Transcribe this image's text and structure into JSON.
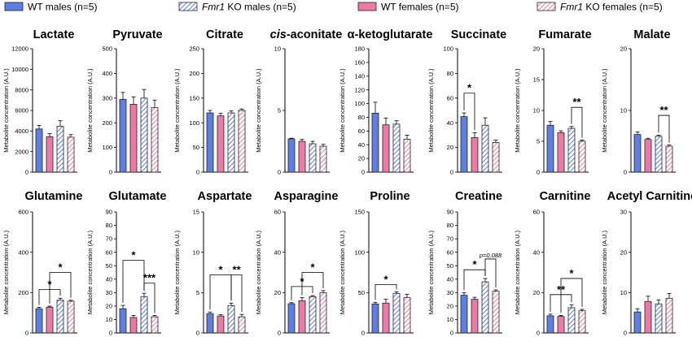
{
  "legend": [
    {
      "prefix": "WT",
      "rest": " males (n=5)",
      "italic": false,
      "color": "#5b7fe6",
      "hatched": false
    },
    {
      "prefix": "Fmr1",
      "rest": " KO males (n=5)",
      "italic": true,
      "color": "#5b7fe6",
      "hatched": true
    },
    {
      "prefix": "WT",
      "rest": " females (n=5)",
      "italic": false,
      "color": "#ef78a6",
      "hatched": false
    },
    {
      "prefix": "Fmr1",
      "rest": " KO females (n=5)",
      "italic": true,
      "color": "#ef78a6",
      "hatched": true
    }
  ],
  "colors": {
    "male": "#5b7fe6",
    "female": "#ef78a6",
    "hatch": "#5b7fe6",
    "hatch_female": "#ef78a6"
  },
  "ylabel": "Metabolite concentration (A.U.)",
  "chart_data": [
    {
      "type": "bar",
      "title": "Lactate",
      "title_italic_prefix": "",
      "ylim": [
        0,
        12000
      ],
      "yticks": [
        0,
        2000,
        4000,
        6000,
        8000,
        10000,
        12000
      ],
      "values": [
        4200,
        3450,
        4450,
        3400
      ],
      "errors": [
        350,
        300,
        550,
        250
      ],
      "sig": []
    },
    {
      "type": "bar",
      "title": "Pyruvate",
      "title_italic_prefix": "",
      "ylim": [
        0,
        500
      ],
      "yticks": [
        0,
        100,
        200,
        300,
        400,
        500
      ],
      "values": [
        295,
        275,
        300,
        262
      ],
      "errors": [
        28,
        30,
        35,
        30
      ],
      "sig": []
    },
    {
      "type": "bar",
      "title": "Citrate",
      "title_italic_prefix": "",
      "ylim": [
        0,
        250
      ],
      "yticks": [
        0,
        50,
        100,
        150,
        200,
        250
      ],
      "values": [
        120,
        114,
        120,
        125
      ],
      "errors": [
        5,
        5,
        4,
        3
      ],
      "sig": []
    },
    {
      "type": "bar",
      "title": "-aconitate",
      "title_italic_prefix": "cis",
      "ylim": [
        0,
        10
      ],
      "yticks": [
        0,
        5,
        10
      ],
      "values": [
        2.7,
        2.5,
        2.3,
        2.1
      ],
      "errors": [
        0.05,
        0.15,
        0.2,
        0.15
      ],
      "sig": []
    },
    {
      "type": "bar",
      "title": "α-ketoglutarate",
      "title_italic_prefix": "",
      "ylim": [
        0,
        180
      ],
      "yticks": [
        0,
        20,
        40,
        60,
        80,
        100,
        120,
        140,
        160,
        180
      ],
      "values": [
        86,
        69,
        70,
        48
      ],
      "errors": [
        16,
        10,
        5,
        6
      ],
      "sig": []
    },
    {
      "type": "bar",
      "title": "Succinate",
      "title_italic_prefix": "",
      "ylim": [
        0,
        100
      ],
      "yticks": [
        0,
        20,
        40,
        60,
        80,
        100
      ],
      "values": [
        45,
        28,
        38,
        24
      ],
      "errors": [
        3,
        4,
        6,
        2
      ],
      "sig": [
        {
          "a": 0,
          "b": 1,
          "label": "*",
          "y": 64
        }
      ]
    },
    {
      "type": "bar",
      "title": "Fumarate",
      "title_italic_prefix": "",
      "ylim": [
        0,
        20
      ],
      "yticks": [
        0,
        5,
        10,
        15,
        20
      ],
      "values": [
        7.6,
        6.4,
        7.1,
        5.0
      ],
      "errors": [
        0.6,
        0.3,
        0.3,
        0.2
      ],
      "sig": [
        {
          "a": 2,
          "b": 3,
          "label": "**",
          "y": 10.5
        }
      ]
    },
    {
      "type": "bar",
      "title": "Malate",
      "title_italic_prefix": "",
      "ylim": [
        0,
        20
      ],
      "yticks": [
        0,
        10,
        20
      ],
      "values": [
        6.1,
        5.3,
        5.8,
        4.2
      ],
      "errors": [
        0.4,
        0.2,
        0.2,
        0.2
      ],
      "sig": [
        {
          "a": 2,
          "b": 3,
          "label": "**",
          "y": 9.2
        }
      ]
    },
    {
      "type": "bar",
      "title": "Glutamine",
      "title_italic_prefix": "",
      "ylim": [
        0,
        600
      ],
      "yticks": [
        0,
        200,
        400,
        600
      ],
      "values": [
        120,
        128,
        162,
        157
      ],
      "errors": [
        7,
        5,
        10,
        5
      ],
      "sig": [
        {
          "a": 0,
          "b": 2,
          "label": "*",
          "y": 215
        },
        {
          "a": 1,
          "b": 3,
          "label": "*",
          "y": 300
        }
      ]
    },
    {
      "type": "bar",
      "title": "Glutamate",
      "title_italic_prefix": "",
      "ylim": [
        0,
        90
      ],
      "yticks": [
        0,
        10,
        20,
        30,
        40,
        50,
        60,
        70,
        80,
        90
      ],
      "values": [
        18,
        11.5,
        27,
        12
      ],
      "errors": [
        2.5,
        1.5,
        2.5,
        1
      ],
      "sig": [
        {
          "a": 0,
          "b": 2,
          "label": "*",
          "y": 54
        },
        {
          "a": 2,
          "b": 3,
          "label": "***",
          "y": 37
        }
      ]
    },
    {
      "type": "bar",
      "title": "Aspartate",
      "title_italic_prefix": "",
      "ylim": [
        0,
        15
      ],
      "yticks": [
        0,
        5,
        10,
        15
      ],
      "values": [
        2.4,
        2.1,
        3.4,
        2.0
      ],
      "errors": [
        0.2,
        0.15,
        0.3,
        0.3
      ],
      "sig": [
        {
          "a": 0,
          "b": 2,
          "label": "*",
          "y": 7.2
        },
        {
          "a": 2,
          "b": 3,
          "label": "**",
          "y": 7.2
        }
      ]
    },
    {
      "type": "bar",
      "title": "Asparagine",
      "title_italic_prefix": "",
      "ylim": [
        0,
        60
      ],
      "yticks": [
        0,
        20,
        40,
        60
      ],
      "values": [
        14.5,
        16,
        18,
        20
      ],
      "errors": [
        0.5,
        1.5,
        0.5,
        1
      ],
      "sig": [
        {
          "a": 0,
          "b": 2,
          "label": "*",
          "y": 23
        },
        {
          "a": 1,
          "b": 3,
          "label": "*",
          "y": 30
        }
      ]
    },
    {
      "type": "bar",
      "title": "Proline",
      "title_italic_prefix": "",
      "ylim": [
        0,
        150
      ],
      "yticks": [
        0,
        50,
        100,
        150
      ],
      "values": [
        36,
        37,
        49,
        44
      ],
      "errors": [
        2,
        5,
        2,
        4
      ],
      "sig": [
        {
          "a": 0,
          "b": 2,
          "label": "*",
          "y": 60
        }
      ]
    },
    {
      "type": "bar",
      "title": "Creatine",
      "title_italic_prefix": "",
      "ylim": [
        0,
        90
      ],
      "yticks": [
        0,
        10,
        20,
        30,
        40,
        50,
        60,
        70,
        80,
        90
      ],
      "values": [
        28,
        25,
        38,
        31
      ],
      "errors": [
        2,
        1.5,
        2.5,
        1
      ],
      "sig": [
        {
          "a": 0,
          "b": 2,
          "label": "*",
          "y": 47
        },
        {
          "a": 2,
          "b": 3,
          "label": "p=0.088",
          "y": 55,
          "italic": true
        }
      ]
    },
    {
      "type": "bar",
      "title": "Carnitine",
      "title_italic_prefix": "",
      "ylim": [
        0,
        60
      ],
      "yticks": [
        0,
        20,
        40,
        60
      ],
      "values": [
        8.5,
        8.2,
        12.5,
        11
      ],
      "errors": [
        0.8,
        0.5,
        1.5,
        0.7
      ],
      "sig": [
        {
          "a": 0,
          "b": 2,
          "label": "**",
          "y": 19
        },
        {
          "a": 1,
          "b": 3,
          "label": "*",
          "y": 27
        }
      ]
    },
    {
      "type": "bar",
      "title": "Acetyl Carnitine",
      "title_italic_prefix": "",
      "ylim": [
        0,
        30
      ],
      "yticks": [
        0,
        10,
        20,
        30
      ],
      "values": [
        5.2,
        7.8,
        7.2,
        8.6
      ],
      "errors": [
        0.8,
        1.3,
        1.0,
        1.2
      ],
      "sig": []
    }
  ]
}
